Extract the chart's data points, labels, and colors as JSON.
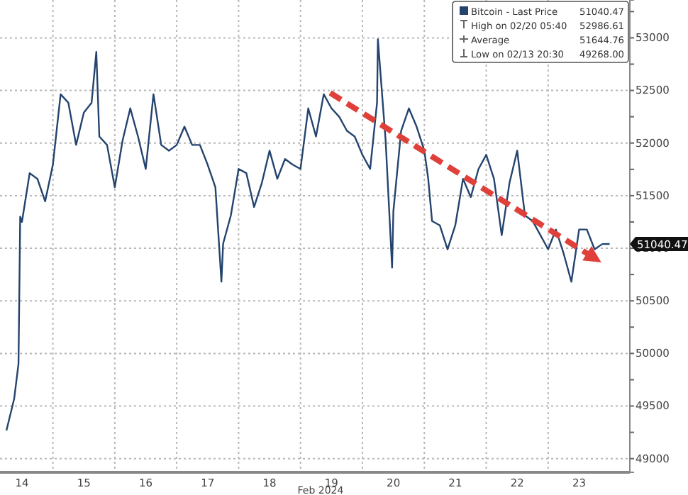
{
  "chart_data": {
    "type": "line",
    "xlabel": "Feb 2024",
    "legend": "top right",
    "grid": true,
    "xlim": [
      "2024-02-14T03:30",
      "2024-02-24T07:40"
    ],
    "xticks": [
      {
        "value": "2024-02-14T12:00",
        "label": "14"
      },
      {
        "value": "2024-02-15T00:00",
        "label": null
      },
      {
        "value": "2024-02-15T12:00",
        "label": "15"
      },
      {
        "value": "2024-02-16T00:00",
        "label": null
      },
      {
        "value": "2024-02-16T12:00",
        "label": "16"
      },
      {
        "value": "2024-02-17T00:00",
        "label": null
      },
      {
        "value": "2024-02-17T12:00",
        "label": "17"
      },
      {
        "value": "2024-02-18T00:00",
        "label": null
      },
      {
        "value": "2024-02-18T12:00",
        "label": "18"
      },
      {
        "value": "2024-02-19T00:00",
        "label": null
      },
      {
        "value": "2024-02-19T12:00",
        "label": "19"
      },
      {
        "value": "2024-02-20T00:00",
        "label": null
      },
      {
        "value": "2024-02-20T12:00",
        "label": "20"
      },
      {
        "value": "2024-02-21T00:00",
        "label": null
      },
      {
        "value": "2024-02-21T12:00",
        "label": "21"
      },
      {
        "value": "2024-02-22T00:00",
        "label": null
      },
      {
        "value": "2024-02-22T12:00",
        "label": "22"
      },
      {
        "value": "2024-02-23T00:00",
        "label": null
      },
      {
        "value": "2024-02-23T12:00",
        "label": "23"
      }
    ],
    "ylim": [
      48870,
      53360
    ],
    "yticks": [
      49000,
      {
        "value": 49250,
        "label": null
      },
      49500,
      {
        "value": 49750,
        "label": null
      },
      50000,
      {
        "value": 50250,
        "label": null
      },
      50500,
      {
        "value": 50750,
        "label": null
      },
      51000,
      {
        "value": 51250,
        "label": null
      },
      51500,
      {
        "value": 51750,
        "label": null
      },
      52000,
      {
        "value": 52250,
        "label": null
      },
      52500,
      {
        "value": 52750,
        "label": null
      },
      53000,
      {
        "value": 53250,
        "label": null
      }
    ],
    "series": [
      {
        "name": "Bitcoin - Last Price",
        "color": "#24446e",
        "line_style": "solid",
        "x": [
          "2024-02-14T06:00",
          "2024-02-14T09:00",
          "2024-02-14T10:40",
          "2024-02-14T11:20",
          "2024-02-14T12:00",
          "2024-02-14T15:00",
          "2024-02-14T18:00",
          "2024-02-14T21:00",
          "2024-02-15T00:00",
          "2024-02-15T03:00",
          "2024-02-15T06:00",
          "2024-02-15T09:00",
          "2024-02-15T12:00",
          "2024-02-15T15:00",
          "2024-02-15T16:50",
          "2024-02-15T18:00",
          "2024-02-15T21:00",
          "2024-02-16T00:00",
          "2024-02-16T03:00",
          "2024-02-16T06:00",
          "2024-02-16T09:00",
          "2024-02-16T12:00",
          "2024-02-16T15:00",
          "2024-02-16T18:00",
          "2024-02-16T21:00",
          "2024-02-17T00:00",
          "2024-02-17T03:00",
          "2024-02-17T06:00",
          "2024-02-17T09:00",
          "2024-02-17T12:00",
          "2024-02-17T15:00",
          "2024-02-17T17:20",
          "2024-02-17T18:00",
          "2024-02-17T21:00",
          "2024-02-18T00:00",
          "2024-02-18T03:00",
          "2024-02-18T06:00",
          "2024-02-18T09:00",
          "2024-02-18T12:00",
          "2024-02-18T15:00",
          "2024-02-18T18:00",
          "2024-02-18T21:00",
          "2024-02-19T00:00",
          "2024-02-19T03:00",
          "2024-02-19T06:00",
          "2024-02-19T09:00",
          "2024-02-19T12:00",
          "2024-02-19T15:00",
          "2024-02-19T18:00",
          "2024-02-19T21:00",
          "2024-02-20T00:00",
          "2024-02-20T03:00",
          "2024-02-20T05:40",
          "2024-02-20T06:00",
          "2024-02-20T09:00",
          "2024-02-20T11:30",
          "2024-02-20T12:00",
          "2024-02-20T15:00",
          "2024-02-20T18:00",
          "2024-02-20T21:00",
          "2024-02-21T00:00",
          "2024-02-21T01:30",
          "2024-02-21T03:00",
          "2024-02-21T06:00",
          "2024-02-21T09:00",
          "2024-02-21T12:00",
          "2024-02-21T15:00",
          "2024-02-21T18:00",
          "2024-02-21T21:00",
          "2024-02-22T00:00",
          "2024-02-22T03:00",
          "2024-02-22T06:00",
          "2024-02-22T09:00",
          "2024-02-22T12:00",
          "2024-02-22T15:00",
          "2024-02-22T18:00",
          "2024-02-22T21:00",
          "2024-02-23T00:00",
          "2024-02-23T03:00",
          "2024-02-23T06:00",
          "2024-02-23T09:00",
          "2024-02-23T12:00",
          "2024-02-23T15:00",
          "2024-02-23T18:00",
          "2024-02-23T21:00",
          "2024-02-23T23:50"
        ],
        "values": [
          49268,
          49570,
          49900,
          51300,
          51250,
          51714,
          51660,
          51446,
          51794,
          52464,
          52383,
          51982,
          52290,
          52383,
          52866,
          52062,
          51982,
          51580,
          52022,
          52330,
          52062,
          51754,
          52464,
          51982,
          51928,
          51982,
          52156,
          51982,
          51982,
          51794,
          51580,
          50682,
          51044,
          51312,
          51754,
          51714,
          51392,
          51620,
          51928,
          51660,
          51848,
          51794,
          51754,
          52330,
          52062,
          52464,
          52330,
          52250,
          52116,
          52062,
          51888,
          51754,
          52383,
          52986.61,
          52022,
          50816,
          51352,
          52116,
          52330,
          52156,
          51928,
          51660,
          51258,
          51218,
          50990,
          51218,
          51660,
          51486,
          51754,
          51888,
          51660,
          51124,
          51620,
          51928,
          51312,
          51258,
          51124,
          50990,
          51178,
          50950,
          50682,
          51178,
          51178,
          50990,
          51040,
          51040.47
        ]
      },
      {
        "color": "#e0403a",
        "line_style": "dashed",
        "x": [
          "2024-02-19T11:30",
          "2024-02-23T17:50"
        ],
        "values": [
          52477,
          50909
        ]
      }
    ],
    "annotations": [
      {
        "text": "51040.47",
        "x": "2024-02-23T23:50",
        "y": 51040.47
      },
      "51040.47",
      "High on 02/20 05:40",
      "52986.61",
      "Average",
      "51644.76",
      "Low on 02/13 20:30",
      "49268.00"
    ]
  }
}
